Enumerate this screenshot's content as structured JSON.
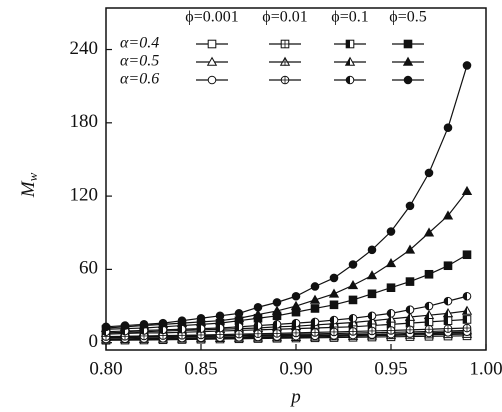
{
  "chart_data": {
    "type": "line",
    "xlabel": "p",
    "ylabel": "M",
    "ylabel_subscript": "w",
    "legend_columns": [
      "ϕ=0.001",
      "ϕ=0.01",
      "ϕ=0.1",
      "ϕ=0.5"
    ],
    "legend_rows": [
      "α=0.4",
      "α=0.5",
      "α=0.6"
    ],
    "x": [
      0.8,
      0.81,
      0.82,
      0.83,
      0.84,
      0.85,
      0.86,
      0.87,
      0.88,
      0.89,
      0.9,
      0.91,
      0.92,
      0.93,
      0.94,
      0.95,
      0.96,
      0.97,
      0.98,
      0.99
    ],
    "xlim": [
      0.8,
      1.0
    ],
    "xticks": [
      {
        "value": 0.8,
        "label": "0.80"
      },
      {
        "value": 0.85,
        "label": "0.85"
      },
      {
        "value": 0.9,
        "label": "0.90"
      },
      {
        "value": 0.95,
        "label": "0.95"
      },
      {
        "value": 1.0,
        "label": "1.00"
      }
    ],
    "ylim": [
      -6,
      274
    ],
    "yticks": [
      0,
      60,
      120,
      180,
      240
    ],
    "color": "#111111",
    "series": [
      {
        "marker": "square",
        "fill": "open",
        "values": [
          2,
          2.1,
          2.2,
          2.4,
          2.6,
          2.8,
          3,
          3.2,
          3.4,
          3.6,
          3.8,
          4,
          4.2,
          4.4,
          4.6,
          4.8,
          5,
          5.2,
          5.4,
          5.6
        ]
      },
      {
        "marker": "square",
        "fill": "cross",
        "values": [
          4,
          4.2,
          4.4,
          4.6,
          4.8,
          5,
          5.2,
          5.4,
          5.6,
          5.8,
          6,
          6.2,
          6.4,
          6.6,
          6.8,
          7,
          7.2,
          7.5,
          7.8,
          8
        ]
      },
      {
        "marker": "square",
        "fill": "half",
        "values": [
          7,
          7.5,
          8,
          8,
          8.5,
          9,
          9.5,
          10,
          10.5,
          11,
          11.5,
          12,
          12.5,
          13,
          14,
          15,
          16,
          17,
          18,
          19
        ]
      },
      {
        "marker": "square",
        "fill": "solid",
        "values": [
          11,
          11.5,
          12,
          13,
          14,
          15,
          16,
          18,
          20,
          22,
          25,
          28,
          31,
          35,
          40,
          45,
          50,
          56,
          63,
          72
        ]
      },
      {
        "marker": "triangle",
        "fill": "open",
        "values": [
          2.5,
          2.7,
          2.9,
          3.1,
          3.3,
          3.5,
          3.7,
          3.9,
          4.1,
          4.3,
          4.5,
          4.8,
          5.1,
          5.4,
          5.7,
          6,
          6.3,
          6.6,
          6.8,
          7
        ]
      },
      {
        "marker": "triangle",
        "fill": "cross",
        "values": [
          4.5,
          4.7,
          5,
          5.2,
          5.4,
          5.6,
          5.8,
          6,
          6.3,
          6.6,
          6.9,
          7.2,
          7.5,
          7.8,
          8.1,
          8.4,
          8.8,
          9.2,
          9.6,
          10
        ]
      },
      {
        "marker": "triangle",
        "fill": "half",
        "values": [
          8,
          8.5,
          9,
          9.5,
          10,
          10.5,
          11,
          11.5,
          12,
          13,
          13.5,
          14.5,
          15.5,
          16.5,
          18,
          19.5,
          21,
          22.5,
          24,
          26
        ]
      },
      {
        "marker": "triangle",
        "fill": "solid",
        "values": [
          12,
          13,
          14,
          15,
          16,
          17,
          18,
          20,
          23,
          26,
          30,
          35,
          40,
          47,
          55,
          65,
          76,
          90,
          104,
          124
        ]
      },
      {
        "marker": "circle",
        "fill": "open",
        "values": [
          3,
          3.2,
          3.4,
          3.6,
          3.8,
          4,
          4.2,
          4.4,
          4.7,
          5,
          5.3,
          5.6,
          5.9,
          6.2,
          6.6,
          7,
          7.5,
          8,
          8.5,
          9
        ]
      },
      {
        "marker": "circle",
        "fill": "cross",
        "values": [
          5,
          5.2,
          5.5,
          5.8,
          6,
          6.3,
          6.6,
          7,
          7.3,
          7.6,
          8,
          8.4,
          8.8,
          9.2,
          9.6,
          10,
          10.5,
          11,
          11.5,
          12
        ]
      },
      {
        "marker": "circle",
        "fill": "half",
        "values": [
          9,
          9.5,
          10,
          10.5,
          11,
          11.5,
          12,
          13,
          14,
          15,
          16,
          17,
          18.5,
          20,
          22,
          24,
          27,
          30,
          34,
          38
        ]
      },
      {
        "marker": "circle",
        "fill": "solid",
        "values": [
          13,
          14,
          15,
          16,
          18,
          20,
          22,
          24,
          29,
          33,
          38,
          46,
          53,
          64,
          76,
          91,
          112,
          139,
          176,
          227
        ]
      }
    ]
  }
}
